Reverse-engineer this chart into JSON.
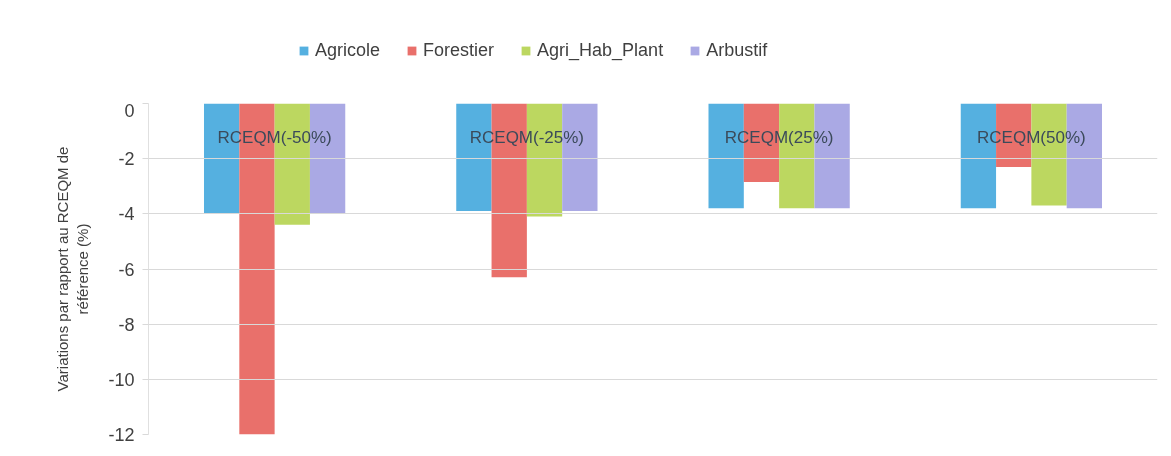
{
  "chart_data": {
    "type": "bar",
    "categories": [
      "RCEQM(-50%)",
      "RCEQM(-25%)",
      "RCEQM(25%)",
      "RCEQM(50%)"
    ],
    "ylabel": "Variations par rapport au RCEQM de référence (%)",
    "ylim": [
      -12,
      0
    ],
    "yticks": [
      -12,
      -10,
      -8,
      -6,
      -4,
      -2,
      0
    ],
    "grid": "y",
    "legend": "top",
    "series": [
      {
        "name": "Agricole",
        "color": "#55b0e0",
        "values": [
          -4.0,
          -3.9,
          -3.8,
          -3.8
        ]
      },
      {
        "name": "Forestier",
        "color": "#e9706b",
        "values": [
          -12.0,
          -6.3,
          -2.85,
          -2.3
        ]
      },
      {
        "name": "Agri_Hab_Plant",
        "color": "#bcd760",
        "values": [
          -4.4,
          -4.1,
          -3.8,
          -3.7
        ]
      },
      {
        "name": "Arbustif",
        "color": "#aaa9e4",
        "values": [
          -4.0,
          -3.9,
          -3.8,
          -3.8
        ]
      }
    ]
  }
}
